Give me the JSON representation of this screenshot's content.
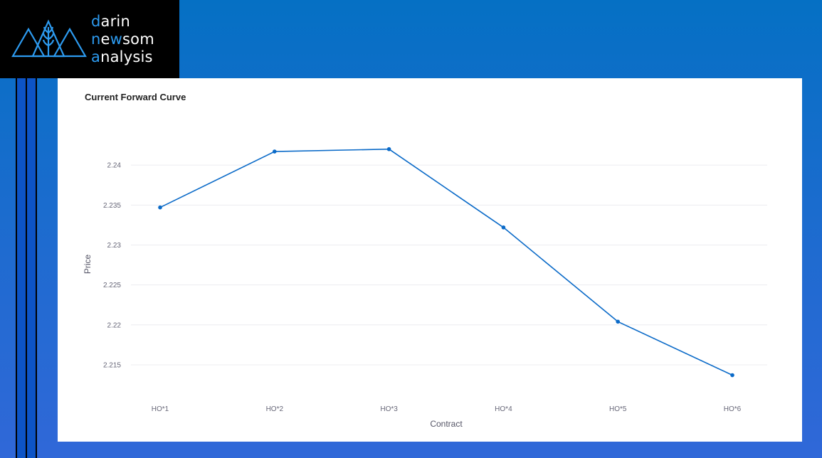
{
  "brand": {
    "line1": {
      "initial": "d",
      "rest": "arin"
    },
    "line2": {
      "initial": "n",
      "middle": "e",
      "accent": "w",
      "rest": "som"
    },
    "line3": {
      "initial": "a",
      "rest": "nalysis"
    },
    "accent_color": "#2d9bf0",
    "logo_icon": "mountains-wheat-icon"
  },
  "chart_data": {
    "type": "line",
    "title": "Current Forward Curve",
    "xlabel": "Contract",
    "ylabel": "Price",
    "categories": [
      "HO*1",
      "HO*2",
      "HO*3",
      "HO*4",
      "HO*5",
      "HO*6"
    ],
    "series": [
      {
        "values": [
          2.2347,
          2.2417,
          2.242,
          2.2322,
          2.2204,
          2.2137
        ],
        "color": "#0a6ac8"
      }
    ],
    "yticks": [
      2.215,
      2.22,
      2.225,
      2.23,
      2.235,
      2.24
    ],
    "ytick_labels": [
      "2.215",
      "2.22",
      "2.225",
      "2.23",
      "2.235",
      "2.24"
    ],
    "ylim": [
      2.2117,
      2.2442
    ],
    "grid": true,
    "legend": "none"
  }
}
